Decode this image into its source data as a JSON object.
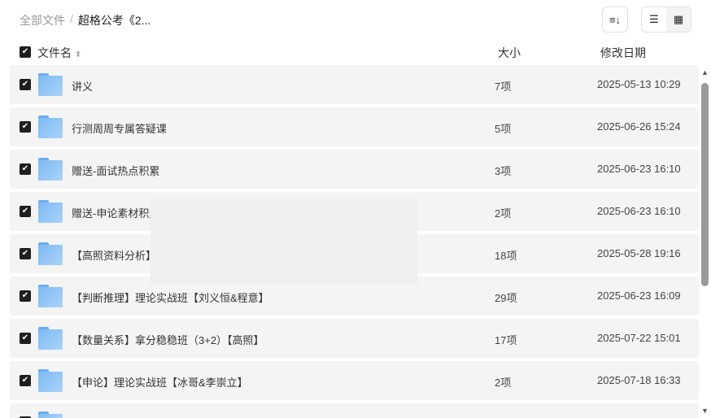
{
  "breadcrumb": {
    "root": "全部文件",
    "sep": "/",
    "current": "超格公考《2..."
  },
  "toolbar": {
    "sort_icon": "≡↓",
    "list_icon": "☰",
    "grid_icon": "▦"
  },
  "columns": {
    "name": "文件名",
    "sort_icon": "⬍",
    "size": "大小",
    "date": "修改日期"
  },
  "rows": [
    {
      "name": "讲义",
      "size": "7项",
      "date": "2025-05-13 10:29"
    },
    {
      "name": "行测周周专属答疑课",
      "size": "5项",
      "date": "2025-06-26 15:24"
    },
    {
      "name": "赠送-面试热点积累",
      "size": "3项",
      "date": "2025-06-23 16:10"
    },
    {
      "name": "赠送-申论素材积累",
      "size": "2项",
      "date": "2025-06-23 16:10"
    },
    {
      "name": "【高照资料分析】",
      "size": "18项",
      "date": "2025-05-28 19:16"
    },
    {
      "name": "【判断推理】理论实战班【刘义恒&程意】",
      "size": "29项",
      "date": "2025-06-23 16:09"
    },
    {
      "name": "【数量关系】拿分稳稳班（3+2）【高照】",
      "size": "17项",
      "date": "2025-07-22 15:01"
    },
    {
      "name": "【申论】理论实战班【冰哥&李崇立】",
      "size": "2项",
      "date": "2025-07-18 16:33"
    },
    {
      "name": "",
      "size": "",
      "date": ""
    }
  ],
  "checkmark": "✔",
  "scroll": {
    "up": "▲",
    "down": "▼"
  }
}
